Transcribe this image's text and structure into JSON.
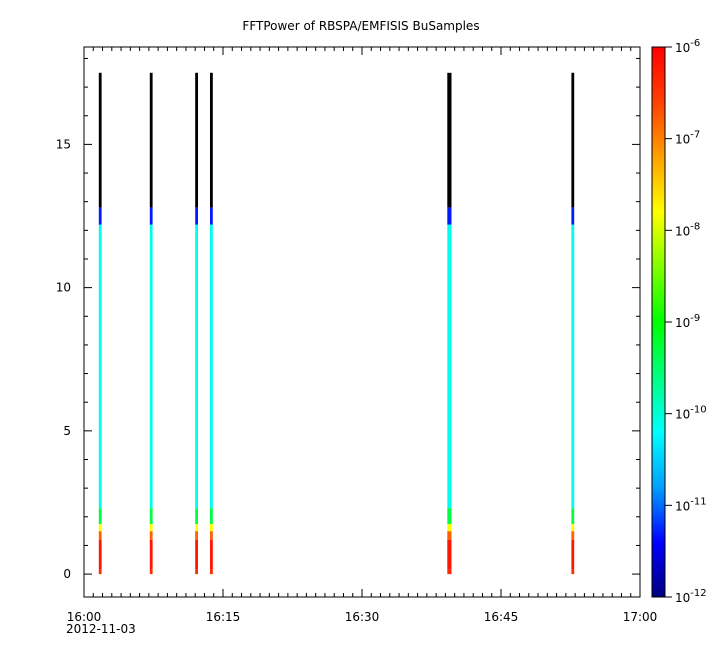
{
  "chart_data": {
    "type": "heatmap",
    "title": "FFTPower of RBSPA/EMFISIS  BuSamples",
    "xlabel": "",
    "ylabel": "",
    "x_date_label": "2012-11-03",
    "x_ticks": [
      "16:00",
      "16:15",
      "16:30",
      "16:45",
      "17:00"
    ],
    "x_range_minutes": [
      0,
      60
    ],
    "y_ticks": [
      0,
      5,
      10,
      15
    ],
    "ylim": [
      -0.8,
      18.4
    ],
    "colorbar": {
      "scale": "log",
      "range": [
        1e-12,
        1e-06
      ],
      "ticks": [
        {
          "base": "10",
          "exp": "-12"
        },
        {
          "base": "10",
          "exp": "-11"
        },
        {
          "base": "10",
          "exp": "-10"
        },
        {
          "base": "10",
          "exp": "-9"
        },
        {
          "base": "10",
          "exp": "-8"
        },
        {
          "base": "10",
          "exp": "-7"
        },
        {
          "base": "10",
          "exp": "-6"
        }
      ],
      "colors": [
        "#000080",
        "#0000ff",
        "#00a0ff",
        "#00ffff",
        "#00ff80",
        "#00ff00",
        "#80ff00",
        "#ffff00",
        "#ffa000",
        "#ff4000",
        "#ff0000"
      ]
    },
    "bursts": [
      {
        "time_min": 1.6,
        "width_min": 0.3,
        "y_top": 17.5
      },
      {
        "time_min": 7.1,
        "width_min": 0.3,
        "y_top": 17.5
      },
      {
        "time_min": 12.0,
        "width_min": 0.3,
        "y_top": 17.5
      },
      {
        "time_min": 13.6,
        "width_min": 0.3,
        "y_top": 17.5
      },
      {
        "time_min": 39.2,
        "width_min": 0.45,
        "y_top": 17.5
      },
      {
        "time_min": 52.6,
        "width_min": 0.3,
        "y_top": 17.5
      }
    ],
    "burst_profile": [
      {
        "y0": 0.0,
        "y1": 0.15,
        "log_power": -6.4
      },
      {
        "y0": 0.15,
        "y1": 1.2,
        "log_power": -6.2
      },
      {
        "y0": 1.2,
        "y1": 1.5,
        "log_power": -6.8
      },
      {
        "y0": 1.5,
        "y1": 1.75,
        "log_power": -7.8
      },
      {
        "y0": 1.75,
        "y1": 2.3,
        "log_power": -9.3
      },
      {
        "y0": 2.3,
        "y1": 12.2,
        "log_power": -10.1
      },
      {
        "y0": 12.2,
        "y1": 12.8,
        "log_power": -11.3
      },
      {
        "y0": 12.8,
        "y1": 17.5,
        "log_power": -13.0
      }
    ]
  }
}
